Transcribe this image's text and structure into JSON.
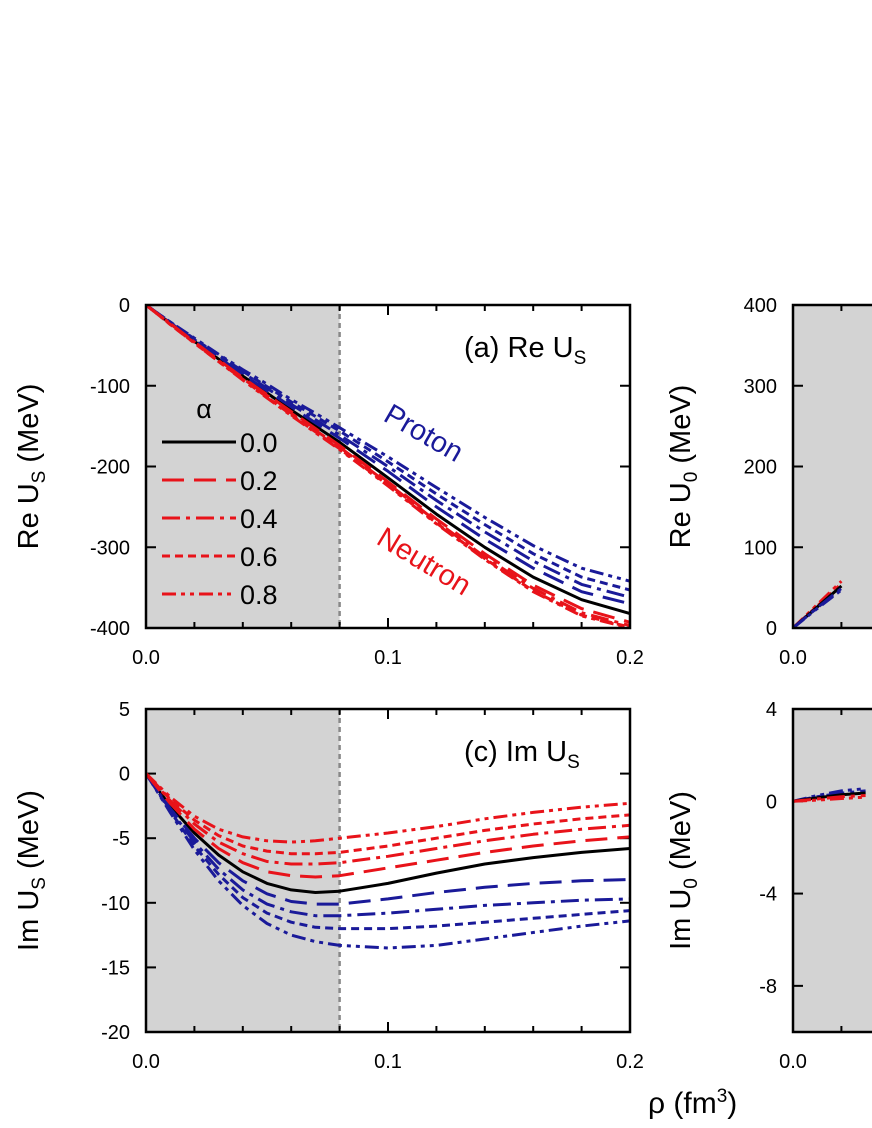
{
  "colors": {
    "neutron": "#e8131a",
    "proton": "#1a1a99",
    "symmetric": "#000000",
    "shade": "#d3d3d3",
    "divider": "#888888"
  },
  "xlabel": "ρ (fm",
  "xlabel_sup": "3",
  "xlabel_close": ")",
  "chart_data": [
    {
      "id": "a",
      "type": "line",
      "title": "(a) Re U",
      "title_sub": "S",
      "ylabel": "Re U",
      "ylabel_sub": "S",
      "ylabel_unit": " (MeV)",
      "xlim": [
        0.0,
        0.2
      ],
      "ylim": [
        -400,
        0
      ],
      "xticks": [
        "0.0",
        "0.1",
        "0.2"
      ],
      "yticks": [
        "0",
        "-100",
        "-200",
        "-300",
        "-400"
      ],
      "shaded_region": [
        0.0,
        0.08
      ],
      "legend": {
        "title": "α",
        "entries": [
          {
            "label": "0.0",
            "dash": "solid"
          },
          {
            "label": "0.2",
            "dash": "dash"
          },
          {
            "label": "0.4",
            "dash": "dashdot"
          },
          {
            "label": "0.6",
            "dash": "short"
          },
          {
            "label": "0.8",
            "dash": "dashdotdot"
          }
        ]
      },
      "annotations": [
        {
          "text": "Proton",
          "color": "proton"
        },
        {
          "text": "Neutron",
          "color": "neutron"
        }
      ],
      "x": [
        0.0,
        0.01,
        0.02,
        0.03,
        0.04,
        0.05,
        0.06,
        0.07,
        0.08,
        0.1,
        0.12,
        0.14,
        0.16,
        0.18,
        0.2
      ],
      "series": [
        {
          "group": "symmetric",
          "alpha": "0.0",
          "dash": "solid",
          "values": [
            0,
            -23,
            -45,
            -67,
            -88,
            -109,
            -130,
            -150,
            -170,
            -214,
            -259,
            -300,
            -337,
            -365,
            -382
          ]
        },
        {
          "group": "proton",
          "alpha": "0.2",
          "dash": "dash",
          "values": [
            0,
            -22,
            -44,
            -65,
            -86,
            -106,
            -126,
            -146,
            -165,
            -206,
            -250,
            -290,
            -326,
            -355,
            -370
          ]
        },
        {
          "group": "proton",
          "alpha": "0.4",
          "dash": "dashdot",
          "values": [
            0,
            -22,
            -43,
            -64,
            -84,
            -103,
            -123,
            -142,
            -161,
            -200,
            -242,
            -281,
            -317,
            -346,
            -362
          ]
        },
        {
          "group": "proton",
          "alpha": "0.6",
          "dash": "short",
          "values": [
            0,
            -21,
            -42,
            -62,
            -82,
            -101,
            -120,
            -138,
            -156,
            -194,
            -234,
            -272,
            -308,
            -337,
            -353
          ]
        },
        {
          "group": "proton",
          "alpha": "0.8",
          "dash": "dashdotdot",
          "values": [
            0,
            -21,
            -41,
            -61,
            -80,
            -98,
            -117,
            -134,
            -152,
            -188,
            -226,
            -263,
            -298,
            -326,
            -342
          ]
        },
        {
          "group": "neutron",
          "alpha": "0.2",
          "dash": "dash",
          "values": [
            0,
            -23,
            -46,
            -68,
            -90,
            -111,
            -132,
            -153,
            -174,
            -219,
            -265,
            -308,
            -347,
            -376,
            -393
          ]
        },
        {
          "group": "neutron",
          "alpha": "0.4",
          "dash": "dashdot",
          "values": [
            0,
            -23,
            -46,
            -69,
            -91,
            -112,
            -134,
            -155,
            -176,
            -221,
            -268,
            -312,
            -351,
            -381,
            -397
          ]
        },
        {
          "group": "neutron",
          "alpha": "0.6",
          "dash": "short",
          "values": [
            0,
            -24,
            -47,
            -70,
            -92,
            -114,
            -136,
            -157,
            -178,
            -223,
            -270,
            -314,
            -354,
            -384,
            -399
          ]
        },
        {
          "group": "neutron",
          "alpha": "0.8",
          "dash": "dashdotdot",
          "values": [
            0,
            -24,
            -47,
            -70,
            -93,
            -115,
            -137,
            -158,
            -179,
            -224,
            -271,
            -315,
            -355,
            -385,
            -400
          ]
        }
      ]
    },
    {
      "id": "b",
      "type": "line",
      "title": "",
      "ylabel": "Re U",
      "ylabel_sub": "0",
      "ylabel_unit": " (MeV)",
      "xlim": [
        0.0,
        0.2
      ],
      "ylim": [
        0,
        400
      ],
      "xticks": [
        "0.0"
      ],
      "yticks": [
        "400",
        "300",
        "200",
        "100",
        "0"
      ],
      "shaded_region": [
        0.0,
        0.08
      ],
      "x": [
        0.0,
        0.01,
        0.02
      ],
      "series": [
        {
          "group": "neutron",
          "alpha": "0.8",
          "dash": "dashdotdot",
          "values": [
            0,
            29,
            58
          ]
        },
        {
          "group": "neutron",
          "alpha": "0.4",
          "dash": "dashdot",
          "values": [
            0,
            27,
            55
          ]
        },
        {
          "group": "symmetric",
          "alpha": "0.0",
          "dash": "solid",
          "values": [
            0,
            26,
            52
          ]
        },
        {
          "group": "proton",
          "alpha": "0.4",
          "dash": "dashdot",
          "values": [
            0,
            25,
            49
          ]
        },
        {
          "group": "proton",
          "alpha": "0.8",
          "dash": "dashdotdot",
          "values": [
            0,
            24,
            47
          ]
        }
      ]
    },
    {
      "id": "c",
      "type": "line",
      "title": "(c) Im U",
      "title_sub": "S",
      "ylabel": "Im U",
      "ylabel_sub": "S",
      "ylabel_unit": " (MeV)",
      "xlim": [
        0.0,
        0.2
      ],
      "ylim": [
        -20,
        5
      ],
      "xticks": [
        "0.0",
        "0.1",
        "0.2"
      ],
      "yticks": [
        "5",
        "0",
        "-5",
        "-10",
        "-15",
        "-20"
      ],
      "shaded_region": [
        0.0,
        0.08
      ],
      "x": [
        0.0,
        0.01,
        0.02,
        0.03,
        0.04,
        0.05,
        0.06,
        0.07,
        0.08,
        0.1,
        0.12,
        0.14,
        0.16,
        0.18,
        0.2
      ],
      "series": [
        {
          "group": "symmetric",
          "alpha": "0.0",
          "dash": "solid",
          "values": [
            0,
            -2.5,
            -4.6,
            -6.3,
            -7.6,
            -8.5,
            -9.0,
            -9.2,
            -9.1,
            -8.5,
            -7.7,
            -7.0,
            -6.5,
            -6.1,
            -5.8
          ]
        },
        {
          "group": "proton",
          "alpha": "0.2",
          "dash": "dash",
          "values": [
            0,
            -2.7,
            -5.0,
            -6.9,
            -8.3,
            -9.3,
            -9.9,
            -10.1,
            -10.1,
            -9.7,
            -9.2,
            -8.8,
            -8.5,
            -8.3,
            -8.2
          ]
        },
        {
          "group": "proton",
          "alpha": "0.4",
          "dash": "dashdot",
          "values": [
            0,
            -2.8,
            -5.3,
            -7.4,
            -9.0,
            -10.1,
            -10.7,
            -11.0,
            -11.0,
            -10.8,
            -10.5,
            -10.2,
            -10.0,
            -9.8,
            -9.7
          ]
        },
        {
          "group": "proton",
          "alpha": "0.6",
          "dash": "short",
          "values": [
            0,
            -2.9,
            -5.6,
            -7.8,
            -9.6,
            -10.8,
            -11.5,
            -11.9,
            -12.0,
            -12.0,
            -11.8,
            -11.5,
            -11.2,
            -10.9,
            -10.6
          ]
        },
        {
          "group": "proton",
          "alpha": "0.8",
          "dash": "dashdotdot",
          "values": [
            0,
            -3.0,
            -5.9,
            -8.3,
            -10.2,
            -11.6,
            -12.5,
            -13.0,
            -13.3,
            -13.5,
            -13.3,
            -12.8,
            -12.3,
            -11.8,
            -11.4
          ]
        },
        {
          "group": "neutron",
          "alpha": "0.2",
          "dash": "dash",
          "values": [
            0,
            -2.3,
            -4.3,
            -5.8,
            -6.9,
            -7.6,
            -7.9,
            -8.0,
            -7.9,
            -7.3,
            -6.7,
            -6.1,
            -5.6,
            -5.2,
            -4.9
          ]
        },
        {
          "group": "neutron",
          "alpha": "0.4",
          "dash": "dashdot",
          "values": [
            0,
            -2.1,
            -3.9,
            -5.3,
            -6.2,
            -6.8,
            -7.0,
            -7.0,
            -6.9,
            -6.4,
            -5.8,
            -5.2,
            -4.7,
            -4.3,
            -4.0
          ]
        },
        {
          "group": "neutron",
          "alpha": "0.6",
          "dash": "short",
          "values": [
            0,
            -2.0,
            -3.6,
            -4.8,
            -5.6,
            -6.0,
            -6.2,
            -6.2,
            -6.1,
            -5.6,
            -5.0,
            -4.4,
            -3.9,
            -3.5,
            -3.2
          ]
        },
        {
          "group": "neutron",
          "alpha": "0.8",
          "dash": "dashdotdot",
          "values": [
            0,
            -1.8,
            -3.3,
            -4.3,
            -4.9,
            -5.2,
            -5.3,
            -5.2,
            -5.0,
            -4.6,
            -4.1,
            -3.5,
            -3.0,
            -2.6,
            -2.3
          ]
        }
      ]
    },
    {
      "id": "d",
      "type": "line",
      "title": "",
      "ylabel": "Im U",
      "ylabel_sub": "0",
      "ylabel_unit": " (MeV)",
      "xlim": [
        0.0,
        0.2
      ],
      "ylim": [
        -10,
        4
      ],
      "xticks": [
        "0.0"
      ],
      "yticks": [
        "4",
        "0",
        "-4",
        "-8"
      ],
      "shaded_region": [
        0.0,
        0.08
      ],
      "x": [
        0.0,
        0.01,
        0.02,
        0.03
      ],
      "series": [
        {
          "group": "proton",
          "alpha": "0.8",
          "dash": "dashdotdot",
          "values": [
            0,
            0.25,
            0.45,
            0.55
          ]
        },
        {
          "group": "proton",
          "alpha": "0.4",
          "dash": "dashdot",
          "values": [
            0,
            0.2,
            0.35,
            0.45
          ]
        },
        {
          "group": "symmetric",
          "alpha": "0.0",
          "dash": "solid",
          "values": [
            0,
            0.15,
            0.28,
            0.36
          ]
        },
        {
          "group": "neutron",
          "alpha": "0.4",
          "dash": "dashdot",
          "values": [
            0,
            0.1,
            0.2,
            0.25
          ]
        },
        {
          "group": "neutron",
          "alpha": "0.8",
          "dash": "dashdotdot",
          "values": [
            0,
            0.05,
            0.12,
            0.18
          ]
        }
      ]
    }
  ]
}
